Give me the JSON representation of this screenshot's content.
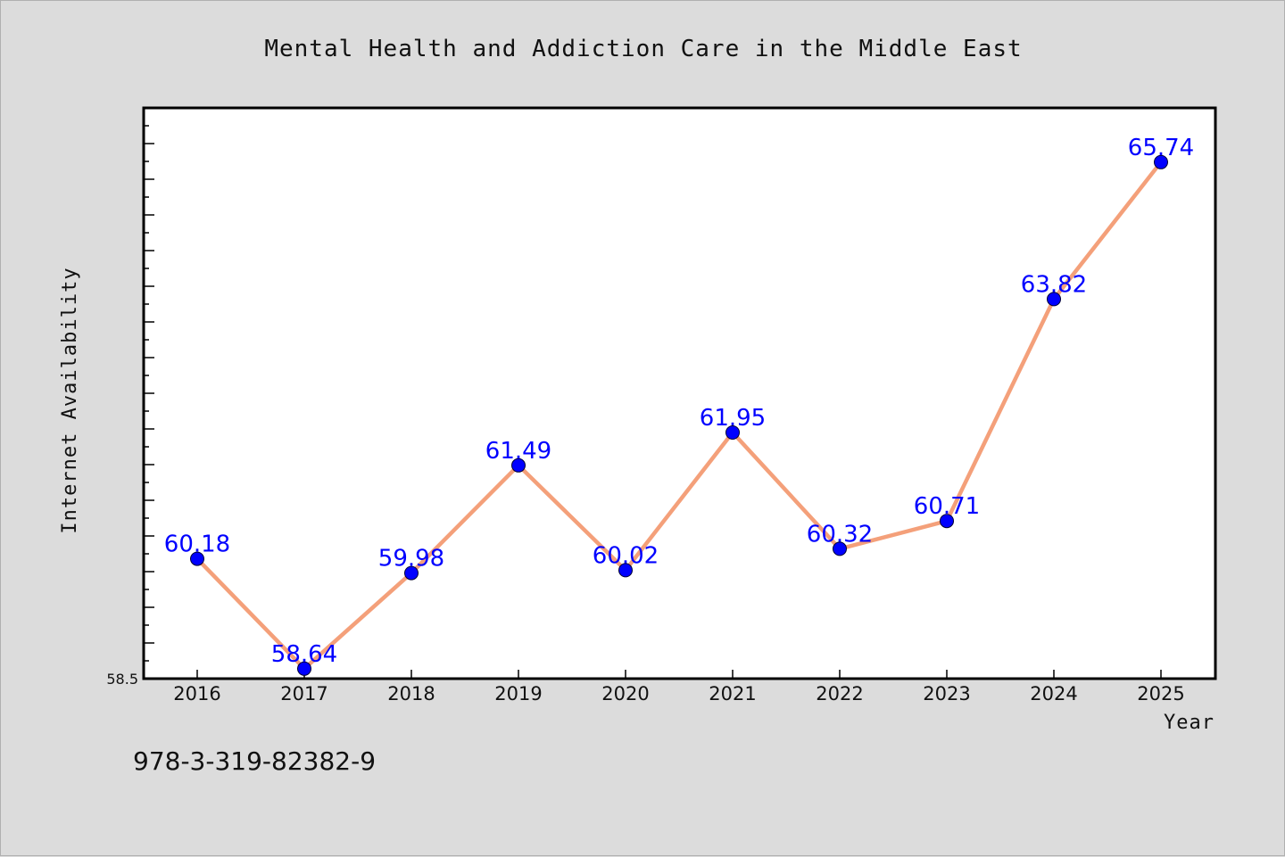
{
  "chart_data": {
    "type": "line",
    "title": "Mental Health and Addiction Care in the Middle East",
    "xlabel": "Year",
    "ylabel": "Internet Availability",
    "categories": [
      "2016",
      "2017",
      "2018",
      "2019",
      "2020",
      "2021",
      "2022",
      "2023",
      "2024",
      "2025"
    ],
    "series": [
      {
        "values": [
          60.18,
          58.64,
          59.98,
          61.49,
          60.02,
          61.95,
          60.32,
          60.71,
          63.82,
          65.74
        ],
        "labels": [
          "60.18",
          "58.64",
          "59.98",
          "61.49",
          "60.02",
          "61.95",
          "60.32",
          "60.71",
          "63.82",
          "65.74"
        ]
      }
    ],
    "ylim": [
      58.5,
      66.5
    ],
    "yticks_labeled": [
      "58.5"
    ],
    "grid": false,
    "line_color": "#f4a07a",
    "marker_color": "#0000ff",
    "label_color": "#0000ff"
  },
  "footer": {
    "isbn": "978-3-319-82382-9"
  }
}
